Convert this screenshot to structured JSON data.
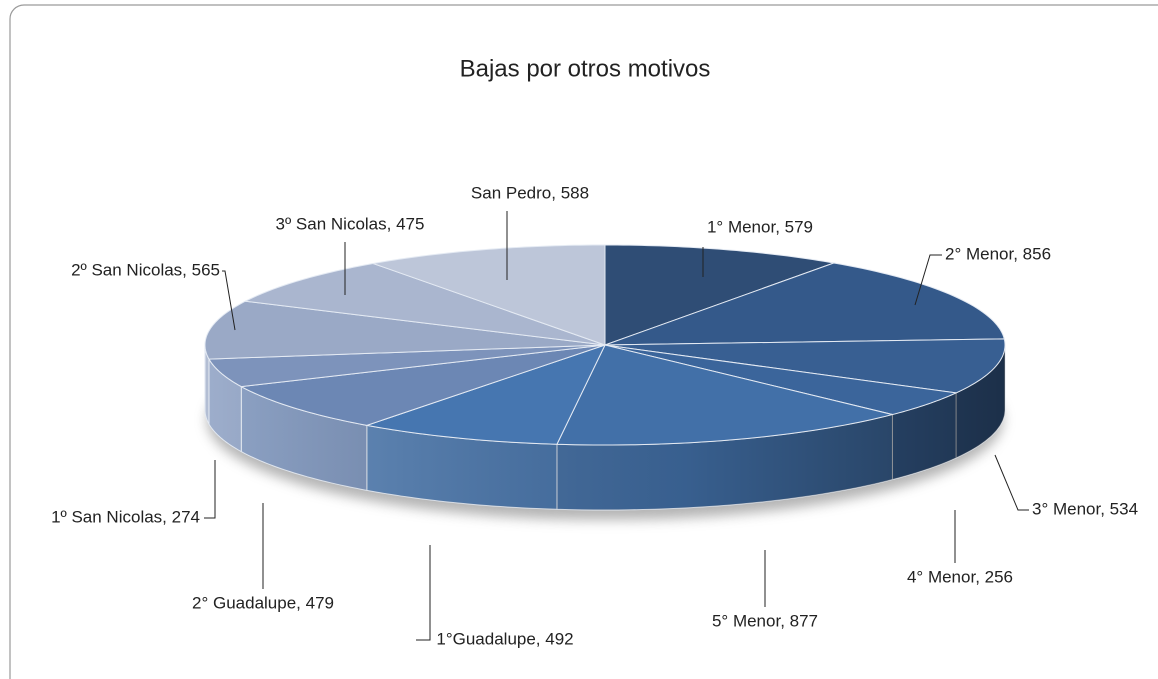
{
  "chart_data": {
    "type": "pie",
    "title": "Bajas por otros motivos",
    "categories": [
      "1° Menor",
      "2° Menor",
      "3° Menor",
      "4° Menor",
      "5° Menor",
      "1°Guadalupe",
      "2° Guadalupe",
      "1º San Nicolas",
      "2º San Nicolas",
      "3º San Nicolas",
      "San Pedro"
    ],
    "values": [
      579,
      856,
      534,
      256,
      877,
      492,
      479,
      274,
      565,
      475,
      588
    ],
    "value_labels": [
      "1° Menor, 579",
      "2° Menor, 856",
      "3° Menor, 534",
      "4° Menor, 256",
      "5° Menor, 877",
      "1°Guadalupe, 492",
      "2° Guadalupe, 479",
      "1º San Nicolas, 274",
      "2º San Nicolas, 565",
      "3º San Nicolas, 475",
      "San Pedro, 588"
    ],
    "colors": [
      "#2f4d75",
      "#34598a",
      "#385f92",
      "#3b659b",
      "#4270a8",
      "#4676b0",
      "#6c87b4",
      "#7d93bb",
      "#9aa9c6",
      "#aab6cf",
      "#bdc6d9"
    ]
  }
}
